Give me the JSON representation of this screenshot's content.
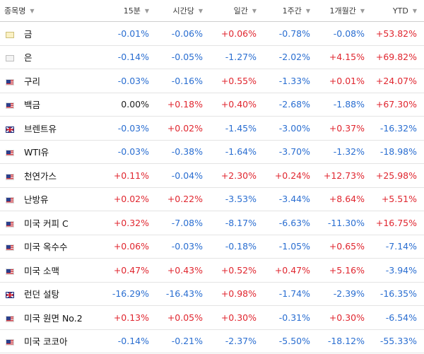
{
  "headers": {
    "name": "종목명",
    "m15": "15분",
    "hourly": "시간당",
    "daily": "일간",
    "weekly": "1주간",
    "monthly": "1개월간",
    "ytd": "YTD"
  },
  "colors": {
    "positive": "#e0262f",
    "negative": "#2a6ed1",
    "neutral": "#1e1e1e"
  },
  "rows": [
    {
      "flag": "gold-bar-icon",
      "name": "금",
      "values": [
        "-0.01%",
        "-0.06%",
        "+0.06%",
        "-0.78%",
        "-0.08%",
        "+53.82%"
      ]
    },
    {
      "flag": "silver-bar-icon",
      "name": "은",
      "values": [
        "-0.14%",
        "-0.05%",
        "-1.27%",
        "-2.02%",
        "+4.15%",
        "+69.82%"
      ]
    },
    {
      "flag": "us-flag-icon",
      "name": "구리",
      "values": [
        "-0.03%",
        "-0.16%",
        "+0.55%",
        "-1.33%",
        "+0.01%",
        "+24.07%"
      ]
    },
    {
      "flag": "us-flag-icon",
      "name": "백금",
      "values": [
        "0.00%",
        "+0.18%",
        "+0.40%",
        "-2.68%",
        "-1.88%",
        "+67.30%"
      ]
    },
    {
      "flag": "uk-flag-icon",
      "name": "브렌트유",
      "values": [
        "-0.03%",
        "+0.02%",
        "-1.45%",
        "-3.00%",
        "+0.37%",
        "-16.32%"
      ]
    },
    {
      "flag": "us-flag-icon",
      "name": "WTI유",
      "values": [
        "-0.03%",
        "-0.38%",
        "-1.64%",
        "-3.70%",
        "-1.32%",
        "-18.98%"
      ]
    },
    {
      "flag": "us-flag-icon",
      "name": "천연가스",
      "values": [
        "+0.11%",
        "-0.04%",
        "+2.30%",
        "+0.24%",
        "+12.73%",
        "+25.98%"
      ]
    },
    {
      "flag": "us-flag-icon",
      "name": "난방유",
      "values": [
        "+0.02%",
        "+0.22%",
        "-3.53%",
        "-3.44%",
        "+8.64%",
        "+5.51%"
      ]
    },
    {
      "flag": "us-flag-icon",
      "name": "미국 커피 C",
      "values": [
        "+0.32%",
        "-7.08%",
        "-8.17%",
        "-6.63%",
        "-11.30%",
        "+16.75%"
      ]
    },
    {
      "flag": "us-flag-icon",
      "name": "미국 옥수수",
      "values": [
        "+0.06%",
        "-0.03%",
        "-0.18%",
        "-1.05%",
        "+0.65%",
        "-7.14%"
      ]
    },
    {
      "flag": "us-flag-icon",
      "name": "미국 소맥",
      "values": [
        "+0.47%",
        "+0.43%",
        "+0.52%",
        "+0.47%",
        "+5.16%",
        "-3.94%"
      ]
    },
    {
      "flag": "uk-flag-icon",
      "name": "런던 설탕",
      "values": [
        "-16.29%",
        "-16.43%",
        "+0.98%",
        "-1.74%",
        "-2.39%",
        "-16.35%"
      ]
    },
    {
      "flag": "us-flag-icon",
      "name": "미국 원면 No.2",
      "values": [
        "+0.13%",
        "+0.05%",
        "+0.30%",
        "-0.31%",
        "+0.30%",
        "-6.54%"
      ]
    },
    {
      "flag": "us-flag-icon",
      "name": "미국 코코아",
      "values": [
        "-0.14%",
        "-0.21%",
        "-2.37%",
        "-5.50%",
        "-18.12%",
        "-55.33%"
      ]
    }
  ]
}
